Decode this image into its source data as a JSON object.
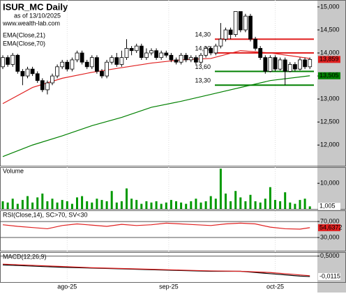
{
  "chart_data": [
    {
      "type": "candlestick",
      "title": "ISUR_MC Daily",
      "subtitle": "as of 13/10/2025",
      "source": "www.wealth-lab.com",
      "open": [
        13700,
        13900,
        13750,
        13950,
        13600,
        13500,
        13650,
        13550,
        13400,
        13200,
        13350,
        13500,
        13700,
        13800,
        13650,
        13850,
        14000,
        13800,
        13700,
        13900,
        13600,
        13500,
        13800,
        13900,
        13750,
        13900,
        14100,
        14050,
        14150,
        13900,
        14000,
        14050,
        13900,
        14000,
        13950,
        13850,
        13800,
        13950,
        13850,
        13900,
        13800,
        13950,
        14100,
        14000,
        14150,
        14300,
        14500,
        14400,
        14900,
        14500,
        14800,
        14300,
        14100,
        13900,
        13600,
        13900,
        13650,
        13850,
        13600,
        13750,
        13650,
        13850,
        13700
      ],
      "high": [
        13950,
        13950,
        14000,
        13980,
        13650,
        13700,
        13700,
        13600,
        13450,
        13400,
        13550,
        13750,
        13850,
        13850,
        13900,
        14050,
        14050,
        13850,
        13950,
        13950,
        13650,
        13850,
        13950,
        14000,
        14050,
        14300,
        14150,
        14200,
        14200,
        14100,
        14100,
        14100,
        14050,
        14050,
        14000,
        13900,
        14000,
        14000,
        13950,
        13950,
        14000,
        14150,
        14150,
        14200,
        14650,
        14550,
        14550,
        14900,
        14900,
        14850,
        14850,
        14350,
        14150,
        13950,
        13950,
        13950,
        13900,
        13900,
        13800,
        13800,
        13900,
        13900,
        13900
      ],
      "low": [
        13650,
        13700,
        13700,
        13550,
        13300,
        13450,
        13500,
        13350,
        13150,
        13100,
        13300,
        13450,
        13650,
        13600,
        13600,
        13800,
        13750,
        13650,
        13650,
        13550,
        13450,
        13450,
        13750,
        13700,
        13700,
        13850,
        13950,
        14000,
        13850,
        13850,
        13950,
        13850,
        13850,
        13900,
        13800,
        13750,
        13750,
        13800,
        13800,
        13750,
        13750,
        13900,
        13950,
        13950,
        14100,
        14250,
        14300,
        14350,
        14450,
        14450,
        14250,
        14050,
        13850,
        13550,
        13580,
        13600,
        13620,
        13300,
        13580,
        13600,
        13620,
        13650,
        13650
      ],
      "close": [
        13900,
        13750,
        13950,
        13600,
        13500,
        13650,
        13550,
        13400,
        13200,
        13350,
        13500,
        13700,
        13800,
        13650,
        13850,
        14000,
        13800,
        13700,
        13900,
        13600,
        13500,
        13800,
        13900,
        13750,
        13900,
        14100,
        14050,
        14150,
        13900,
        14000,
        14050,
        13900,
        14000,
        13950,
        13850,
        13800,
        13950,
        13850,
        13900,
        13800,
        13950,
        14100,
        14000,
        14150,
        14300,
        14500,
        14400,
        14900,
        14500,
        14800,
        14300,
        14100,
        13900,
        13600,
        13900,
        13650,
        13850,
        13600,
        13750,
        13650,
        13850,
        13700,
        13859
      ],
      "last_price": {
        "value": 13859,
        "label": "13,859"
      },
      "series": [
        {
          "name": "EMA(Close,21)",
          "color": "#e02020",
          "x": [
            0,
            6,
            12,
            18,
            24,
            30,
            36,
            42,
            48,
            54,
            62
          ],
          "values": [
            12900,
            13250,
            13450,
            13580,
            13680,
            13780,
            13850,
            13880,
            14050,
            14000,
            13880
          ]
        },
        {
          "name": "EMA(Close,70)",
          "color": "#008000",
          "x": [
            0,
            6,
            12,
            18,
            24,
            30,
            36,
            42,
            48,
            54,
            62
          ],
          "values": [
            11750,
            12000,
            12200,
            12420,
            12600,
            12820,
            12950,
            13100,
            13250,
            13400,
            13505
          ],
          "last_label": {
            "value": 13505,
            "label": "13,505"
          }
        }
      ],
      "levels": [
        {
          "value": 14300,
          "label": "14,30",
          "color": "#e02020"
        },
        {
          "value": 14000,
          "label": "14,00",
          "color": "#e02020"
        },
        {
          "value": 13600,
          "label": "13,60",
          "color": "#008000"
        },
        {
          "value": 13300,
          "label": "13,30",
          "color": "#008000"
        }
      ],
      "ylim": [
        11550,
        15150
      ],
      "yticks": [
        {
          "value": 15000,
          "label": "15,000"
        },
        {
          "value": 14500,
          "label": "14,500"
        },
        {
          "value": 14000,
          "label": "14,000"
        },
        {
          "value": 13500,
          "label": "13,500"
        },
        {
          "value": 13000,
          "label": "13,000"
        },
        {
          "value": 12500,
          "label": "12,500"
        },
        {
          "value": 12000,
          "label": "12,000"
        }
      ],
      "xticks": [
        {
          "value": 13,
          "label": "ago-25"
        },
        {
          "value": 33.5,
          "label": "sep-25"
        },
        {
          "value": 55,
          "label": "oct-25"
        }
      ]
    },
    {
      "type": "bar",
      "title": "Volume",
      "color": "#009900",
      "values": [
        3000,
        2500,
        4000,
        2000,
        3500,
        5000,
        2500,
        4500,
        6000,
        3000,
        4000,
        2500,
        3500,
        3000,
        2000,
        4500,
        5000,
        3000,
        2500,
        4000,
        3500,
        3000,
        7000,
        2500,
        3000,
        8000,
        4000,
        3500,
        2000,
        3000,
        2500,
        3000,
        2000,
        2500,
        3500,
        3000,
        2500,
        2000,
        3000,
        4000,
        2500,
        3000,
        5000,
        4000,
        15700,
        6000,
        3000,
        7000,
        4500,
        3000,
        5500,
        3000,
        2500,
        4000,
        8500,
        3500,
        3000,
        6500,
        2500,
        2000,
        3500,
        4000,
        1005
      ],
      "last_label": {
        "value": 1005,
        "label": "1,005"
      },
      "ylim": [
        0,
        16300
      ],
      "yticks": [
        {
          "value": 10000,
          "label": "10,000"
        }
      ]
    },
    {
      "type": "line",
      "title": "RSI(Close,14), SC>70, SV<30",
      "series": [
        {
          "name": "RSI",
          "color": "#e02020",
          "x": [
            0,
            3,
            6,
            9,
            12,
            15,
            18,
            21,
            24,
            27,
            30,
            33,
            36,
            39,
            42,
            45,
            48,
            51,
            54,
            57,
            60,
            62
          ],
          "values": [
            62,
            58,
            55,
            52,
            60,
            64,
            61,
            58,
            63,
            60,
            62,
            66,
            64,
            62,
            60,
            64,
            66,
            64,
            56,
            52,
            51,
            54.6372
          ],
          "last_label": {
            "value": 54.6372,
            "label": "54,6372"
          }
        }
      ],
      "ylim": [
        -3,
        98
      ],
      "yticks": [
        {
          "value": 70,
          "label": "70,000"
        },
        {
          "value": 30,
          "label": "30,000"
        }
      ]
    },
    {
      "type": "line",
      "title": "MACD(12,26,9)",
      "series": [
        {
          "name": "MACD",
          "color": "#000000",
          "x": [
            0,
            6,
            12,
            18,
            24,
            30,
            36,
            42,
            48,
            54,
            60,
            62
          ],
          "values": [
            0.28,
            0.25,
            0.22,
            0.2,
            0.18,
            0.16,
            0.14,
            0.12,
            0.12,
            0.06,
            0.0,
            -0.0115
          ],
          "last_label": {
            "value": -0.0115,
            "label": "-0,0115"
          }
        },
        {
          "name": "Signal",
          "color": "#e02020",
          "x": [
            0,
            6,
            12,
            18,
            24,
            30,
            36,
            42,
            48,
            54,
            60,
            62
          ],
          "values": [
            0.3,
            0.27,
            0.24,
            0.21,
            0.19,
            0.17,
            0.15,
            0.13,
            0.12,
            0.09,
            0.03,
            0.01
          ]
        }
      ],
      "ylim": [
        -0.15,
        0.6
      ],
      "yticks": [
        {
          "value": 0.5,
          "label": "0,5000"
        }
      ]
    }
  ]
}
